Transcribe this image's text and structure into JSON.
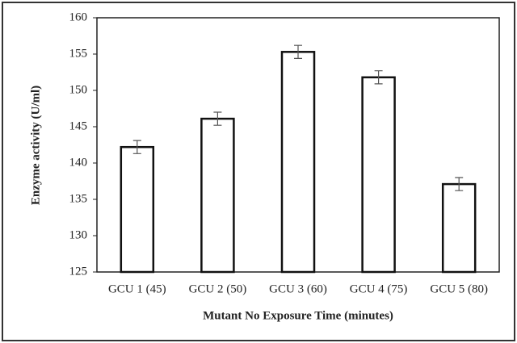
{
  "chart_data": {
    "type": "bar",
    "x_label": "Mutant No Exposure Time (minutes)",
    "y_label": "Enzyme activity (U/ml)",
    "categories": [
      "GCU 1 (45)",
      "GCU 2 (50)",
      "GCU 3 (60)",
      "GCU 4 (75)",
      "GCU 5 (80)"
    ],
    "values": [
      142.2,
      146.1,
      155.3,
      151.8,
      137.1
    ],
    "errors": [
      0.9,
      0.9,
      0.9,
      0.9,
      0.9
    ],
    "color": "#ffffff",
    "ylim": [
      125,
      160
    ],
    "yticks": [
      125,
      130,
      135,
      140,
      145,
      150,
      155,
      160
    ],
    "grid": false
  }
}
